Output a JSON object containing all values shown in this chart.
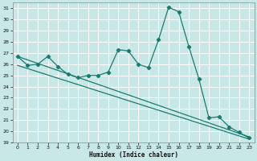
{
  "xlabel": "Humidex (Indice chaleur)",
  "background_color": "#c8e8e8",
  "grid_color": "#ffffff",
  "line_color": "#1a7a6e",
  "xlim": [
    -0.5,
    23.5
  ],
  "ylim": [
    19,
    31.5
  ],
  "xticks": [
    0,
    1,
    2,
    3,
    4,
    5,
    6,
    7,
    8,
    9,
    10,
    11,
    12,
    13,
    14,
    15,
    16,
    17,
    18,
    19,
    20,
    21,
    22,
    23
  ],
  "yticks": [
    19,
    20,
    21,
    22,
    23,
    24,
    25,
    26,
    27,
    28,
    29,
    30,
    31
  ],
  "series1_x": [
    0,
    1,
    2,
    3,
    4,
    5,
    6,
    7,
    8,
    9,
    10,
    11,
    12,
    13,
    14,
    15,
    16,
    17,
    18,
    19,
    20,
    21,
    22,
    23
  ],
  "series1_y": [
    26.7,
    25.9,
    26.0,
    26.7,
    25.8,
    25.1,
    24.8,
    25.0,
    25.0,
    25.3,
    27.3,
    27.2,
    26.0,
    25.7,
    28.2,
    31.1,
    30.7,
    27.6,
    24.7,
    21.2,
    21.3,
    20.4,
    19.9,
    19.4
  ],
  "series2_x": [
    0,
    23
  ],
  "series2_y": [
    26.7,
    19.5
  ],
  "series3_x": [
    0,
    23
  ],
  "series3_y": [
    25.9,
    19.3
  ]
}
